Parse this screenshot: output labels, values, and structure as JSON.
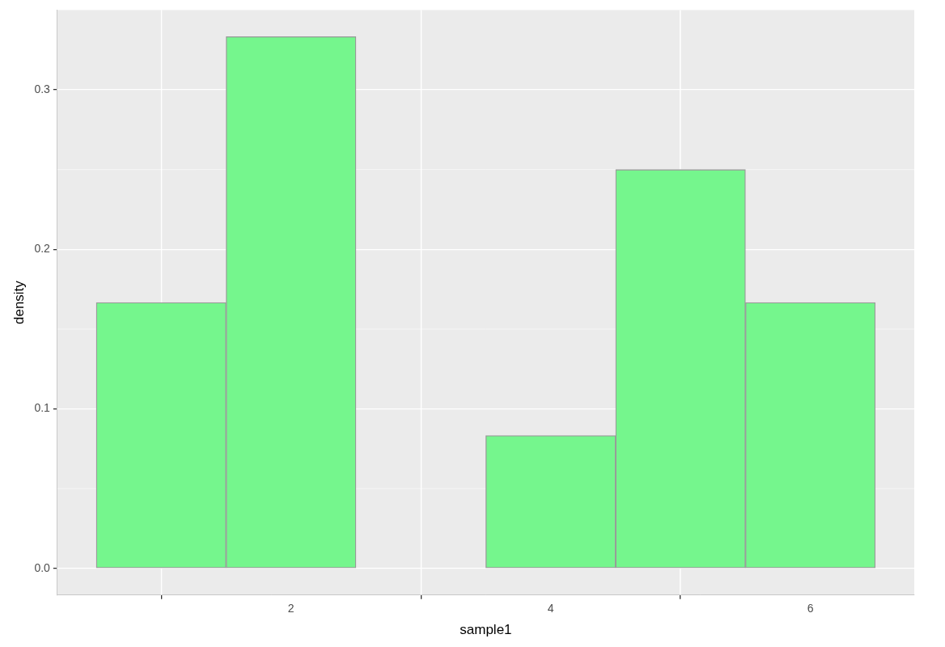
{
  "chart_data": {
    "type": "histogram",
    "xlabel": "sample1",
    "ylabel": "density",
    "bins": [
      0.5,
      1.5,
      2.5,
      3.5,
      4.5,
      5.5,
      6.5
    ],
    "values": [
      0.1667,
      0.3333,
      0,
      0.0833,
      0.25,
      0.1667
    ],
    "color": "#75f68d",
    "xlim": [
      0.2,
      6.8
    ],
    "xticks": [
      2,
      4,
      6
    ],
    "ylim": [
      -0.0167,
      0.35
    ],
    "yticks": [
      {
        "value": 0,
        "label": "0.0"
      },
      0.1,
      0.2,
      0.3
    ],
    "grid": true
  }
}
